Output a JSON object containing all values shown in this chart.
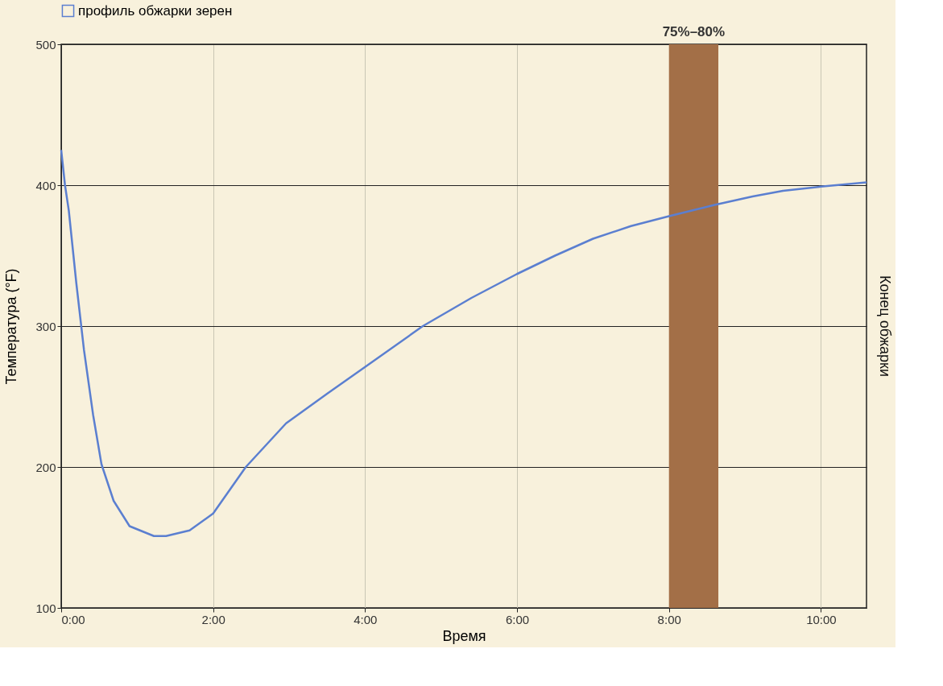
{
  "chart_data": {
    "type": "line",
    "xlabel": "Время",
    "ylabel": "Температура (°F)",
    "xlim": [
      0,
      10.6
    ],
    "ylim": [
      100,
      500
    ],
    "xticks": [
      {
        "value": 0,
        "label": "0:00"
      },
      {
        "value": 2,
        "label": "2:00"
      },
      {
        "value": 4,
        "label": "4:00"
      },
      {
        "value": 6,
        "label": "6:00"
      },
      {
        "value": 8,
        "label": "8:00"
      },
      {
        "value": 10,
        "label": "10:00"
      }
    ],
    "yticks": [
      100,
      200,
      300,
      400,
      500
    ],
    "series": [
      {
        "name": "профиль обжарки зерен",
        "color": "#5b7fd0",
        "x": [
          0,
          0.05,
          0.1,
          0.2,
          0.3,
          0.42,
          0.53,
          0.69,
          0.9,
          1.22,
          1.38,
          1.69,
          2.0,
          2.43,
          2.96,
          3.5,
          4.0,
          4.76,
          5.4,
          6.0,
          6.5,
          7.0,
          7.5,
          8.0,
          8.6,
          9.1,
          9.5,
          10.0,
          10.6
        ],
        "values": [
          425,
          400,
          382,
          330,
          283,
          237,
          202,
          176,
          158,
          151,
          151,
          155,
          167,
          200,
          231,
          252,
          271,
          300,
          320,
          337,
          350,
          362,
          371,
          378,
          386,
          392,
          396,
          399,
          402
        ]
      }
    ],
    "bands": [
      {
        "axis": "x",
        "from": 8.0,
        "to": 8.65,
        "label": "75%–80%",
        "color": "#a36f47"
      }
    ],
    "annotations": [
      "Конец обжарки"
    ],
    "grid": true,
    "legend": "top left",
    "marker": "none",
    "line_style": "solid"
  }
}
